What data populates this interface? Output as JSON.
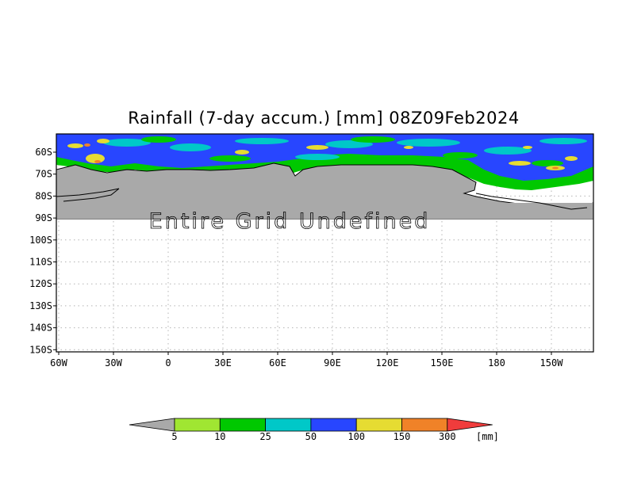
{
  "title": "Rainfall (7-day accum.) [mm] 08Z09Feb2024",
  "no_data_text": "Entire Grid Undefined",
  "lat_labels": [
    "60S",
    "70S",
    "80S",
    "90S",
    "100S",
    "110S",
    "120S",
    "130S",
    "140S",
    "150S"
  ],
  "lon_labels": [
    "60W",
    "30W",
    "0",
    "30E",
    "60E",
    "90E",
    "120E",
    "150E",
    "180",
    "150W"
  ],
  "colorbar": {
    "unit": "[mm]",
    "levels": [
      "5",
      "10",
      "25",
      "50",
      "100",
      "150",
      "300"
    ],
    "colors": [
      "#a0e632",
      "#00c800",
      "#00c8c8",
      "#2846ff",
      "#e6dc32",
      "#f08228",
      "#f03c3c"
    ],
    "under_color": "#a9a9a9"
  },
  "colors": {
    "land": "#a9a9a9",
    "coast": "#000000",
    "grid": "#b4b4b4"
  }
}
